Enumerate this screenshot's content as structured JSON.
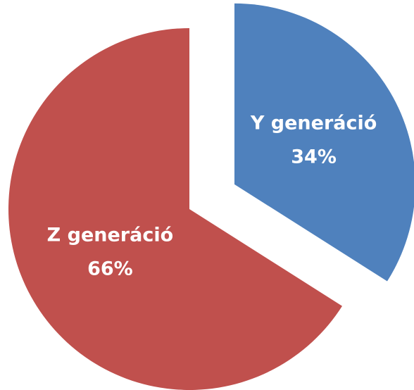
{
  "chart_data": {
    "type": "pie",
    "categories": [
      "Y generáció",
      "Z generáció"
    ],
    "values": [
      34,
      66
    ],
    "value_labels": [
      "34%",
      "66%"
    ],
    "colors": [
      "#4f81bd",
      "#c0504d"
    ],
    "exploded": [
      true,
      false
    ]
  }
}
